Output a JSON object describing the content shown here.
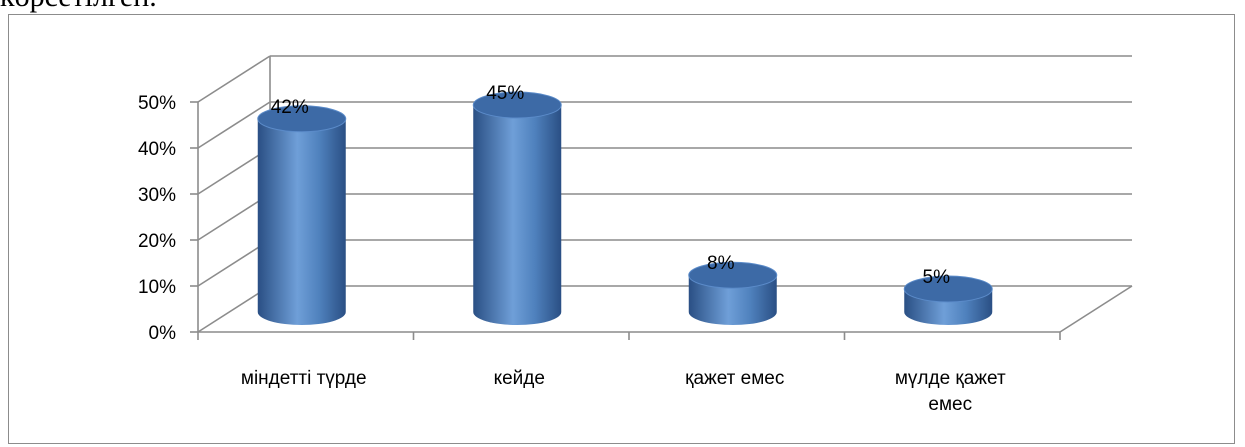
{
  "page": {
    "caption_fragment": "көрсетілген."
  },
  "chart_data": {
    "type": "bar",
    "style": "3d-cylinder",
    "categories": [
      "міндетті түрде",
      "кейде",
      "қажет емес",
      "мүлде қажет емес"
    ],
    "category_lines": [
      [
        "міндетті түрде"
      ],
      [
        "кейде"
      ],
      [
        "қажет емес"
      ],
      [
        "мүлде қажет",
        "емес"
      ]
    ],
    "values": [
      42,
      45,
      8,
      5
    ],
    "data_labels": [
      "42%",
      "45%",
      "8%",
      "5%"
    ],
    "y_ticks": [
      "0%",
      "10%",
      "20%",
      "30%",
      "40%",
      "50%"
    ],
    "ylim": [
      0,
      50
    ],
    "title": "",
    "xlabel": "",
    "ylabel": "",
    "grid": true,
    "legend": "none",
    "colors": {
      "bar_dark": "#2a4f84",
      "bar_mid": "#4f81bd",
      "bar_light": "#6f9fd8",
      "bar_top": "#3d6aa6",
      "grid": "#8c8c8c"
    }
  }
}
